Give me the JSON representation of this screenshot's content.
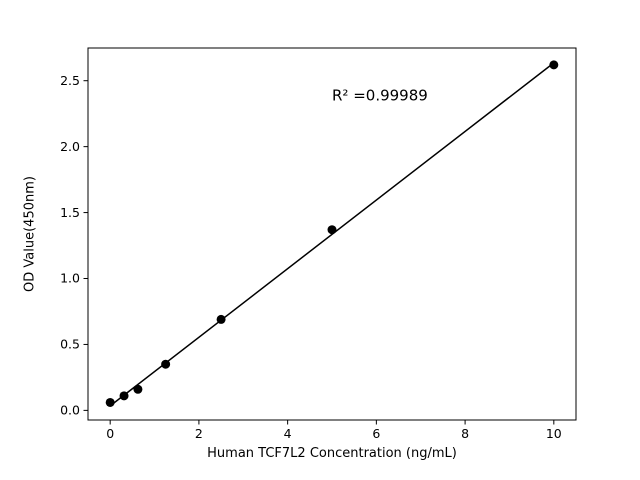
{
  "figure": {
    "background": "#ffffff"
  },
  "chart_data": {
    "type": "scatter",
    "title": "",
    "xlabel": "Human TCF7L2 Concentration (ng/mL)",
    "ylabel": "OD Value(450nm)",
    "x": [
      0,
      0.3125,
      0.625,
      1.25,
      2.5,
      5,
      10
    ],
    "y": [
      0.06,
      0.11,
      0.16,
      0.35,
      0.69,
      1.37,
      2.62
    ],
    "fit": "linear",
    "annotation": {
      "text": "R² =0.99989",
      "x": 5,
      "y": 2.35
    },
    "xlim": [
      -0.5,
      10.5
    ],
    "ylim": [
      -0.073,
      2.748
    ],
    "x_ticks": [
      0,
      2,
      4,
      6,
      8,
      10
    ],
    "x_tick_labels": [
      "0",
      "2",
      "4",
      "6",
      "8",
      "10"
    ],
    "y_ticks": [
      0.0,
      0.5,
      1.0,
      1.5,
      2.0,
      2.5
    ],
    "y_tick_labels": [
      "0.0",
      "0.5",
      "1.0",
      "1.5",
      "2.0",
      "2.5"
    ],
    "grid": false,
    "legend": "none",
    "colors": {
      "line": "#000000",
      "marker": "#000000",
      "axis": "#000000",
      "text": "#000000"
    }
  }
}
